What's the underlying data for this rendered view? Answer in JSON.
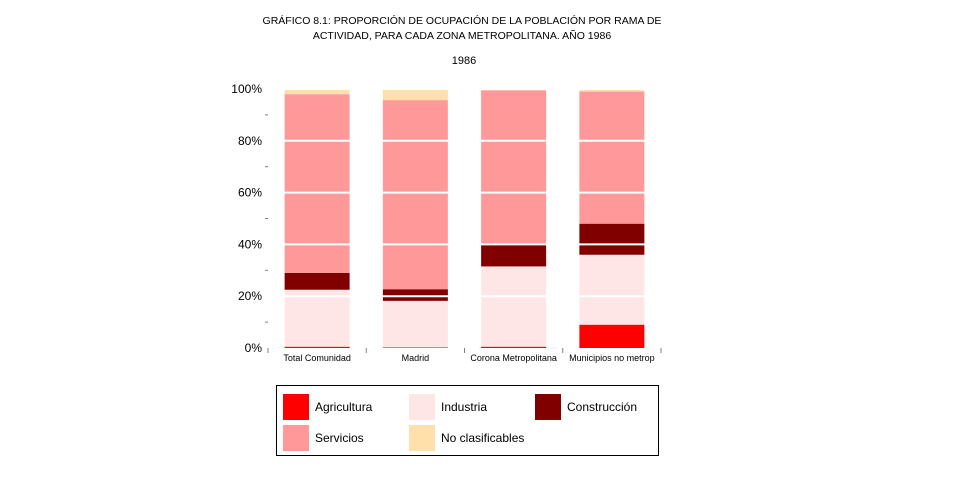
{
  "title_lines": [
    "GRÁFICO 8.1: PROPORCIÓN DE OCUPACIÓN DE LA POBLACIÓN POR RAMA DE",
    "ACTIVIDAD, PARA CADA ZONA METROPOLITANA. AÑO 1986"
  ],
  "subtitle": "1986",
  "chart_data": {
    "type": "bar",
    "stacked": true,
    "percent": true,
    "title": "GRÁFICO 8.1: PROPORCIÓN DE OCUPACIÓN DE LA POBLACIÓN POR RAMA DE ACTIVIDAD, PARA CADA ZONA METROPOLITANA. AÑO 1986",
    "subtitle": "1986",
    "categories": [
      "Total Comunidad",
      "Madrid",
      "Corona Metropolitana",
      "Municipios no metrop"
    ],
    "ylim": [
      0,
      100
    ],
    "yticks": [
      "0%",
      "20%",
      "40%",
      "60%",
      "80%",
      "100%"
    ],
    "grid": true,
    "legend_position": "bottom",
    "series": [
      {
        "name": "Agricultura",
        "color": "#ff0000",
        "values": [
          0.5,
          0.2,
          0.5,
          9
        ]
      },
      {
        "name": "Industria",
        "color": "#ffe6e6",
        "values": [
          22,
          18,
          31,
          27
        ]
      },
      {
        "name": "Construcción",
        "color": "#800000",
        "values": [
          6.5,
          4.5,
          8.5,
          12
        ]
      },
      {
        "name": "Servicios",
        "color": "#ff9999",
        "values": [
          69,
          73,
          59.5,
          51
        ]
      },
      {
        "name": "No clasificables",
        "color": "#ffdfaa",
        "values": [
          2,
          4.3,
          0.5,
          1
        ]
      }
    ]
  },
  "legend": {
    "items": [
      {
        "label": "Agricultura",
        "color": "#ff0000"
      },
      {
        "label": "Industria",
        "color": "#ffe6e6"
      },
      {
        "label": "Construcción",
        "color": "#800000"
      },
      {
        "label": "Servicios",
        "color": "#ff9999"
      },
      {
        "label": "No clasificables",
        "color": "#ffdfaa"
      }
    ]
  }
}
